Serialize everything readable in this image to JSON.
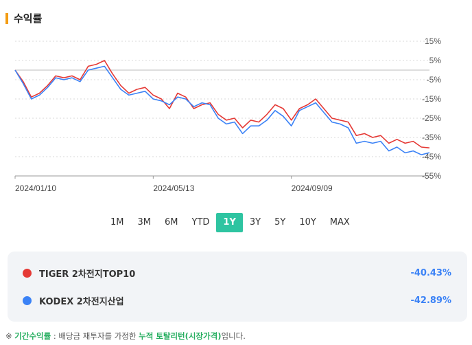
{
  "section": {
    "title": "수익률"
  },
  "chart_data": {
    "type": "line",
    "title": "",
    "xlabel": "",
    "ylabel": "",
    "yticks": [
      "15%",
      "5%",
      "-5%",
      "-15%",
      "-25%",
      "-35%",
      "-45%",
      "-55%"
    ],
    "ylim": [
      -55,
      15
    ],
    "xticks": [
      "2024/01/10",
      "2024/05/13",
      "2024/09/09"
    ],
    "grid": true,
    "x": [
      "2024/01/10",
      "2024/01/17",
      "2024/01/24",
      "2024/01/31",
      "2024/02/07",
      "2024/02/14",
      "2024/02/21",
      "2024/02/28",
      "2024/03/06",
      "2024/03/13",
      "2024/03/20",
      "2024/03/27",
      "2024/04/03",
      "2024/04/10",
      "2024/04/17",
      "2024/04/24",
      "2024/05/01",
      "2024/05/08",
      "2024/05/15",
      "2024/05/22",
      "2024/05/29",
      "2024/06/05",
      "2024/06/12",
      "2024/06/19",
      "2024/06/26",
      "2024/07/03",
      "2024/07/10",
      "2024/07/17",
      "2024/07/24",
      "2024/07/31",
      "2024/08/07",
      "2024/08/14",
      "2024/08/21",
      "2024/08/28",
      "2024/09/04",
      "2024/09/11",
      "2024/09/18",
      "2024/09/25",
      "2024/10/02",
      "2024/10/09",
      "2024/10/16",
      "2024/10/23",
      "2024/10/30",
      "2024/11/06",
      "2024/11/13",
      "2024/11/20",
      "2024/11/27",
      "2024/12/04",
      "2024/12/11",
      "2024/12/18",
      "2024/12/25",
      "2025/01/01"
    ],
    "series": [
      {
        "name": "TIGER 2차전지TOP10",
        "color": "#e53935",
        "values": [
          0,
          -6,
          -14,
          -12,
          -8,
          -3,
          -4,
          -3,
          -5,
          2,
          3,
          5,
          -2,
          -8,
          -12,
          -10,
          -9,
          -13,
          -15,
          -20,
          -12,
          -14,
          -20,
          -18,
          -17,
          -23,
          -26,
          -25,
          -30,
          -26,
          -27,
          -23,
          -18,
          -20,
          -26,
          -20,
          -18,
          -15,
          -20,
          -25,
          -26,
          -27,
          -34,
          -33,
          -35,
          -34,
          -38,
          -36,
          -38,
          -37,
          -40,
          -40.43
        ]
      },
      {
        "name": "KODEX 2차전지산업",
        "color": "#3b82f6",
        "values": [
          0,
          -7,
          -15,
          -13,
          -9,
          -4,
          -5,
          -4,
          -6,
          0,
          1,
          2,
          -4,
          -10,
          -13,
          -12,
          -11,
          -15,
          -16,
          -18,
          -14,
          -15,
          -19,
          -17,
          -18,
          -25,
          -28,
          -27,
          -33,
          -29,
          -29,
          -26,
          -21,
          -24,
          -29,
          -21,
          -19,
          -17,
          -22,
          -27,
          -28,
          -30,
          -38,
          -37,
          -38,
          -37,
          -42,
          -40,
          -43,
          -42,
          -44,
          -42.89
        ]
      }
    ]
  },
  "period_tabs": {
    "items": [
      "1M",
      "3M",
      "6M",
      "YTD",
      "1Y",
      "3Y",
      "5Y",
      "10Y",
      "MAX"
    ],
    "active": "1Y"
  },
  "legend": {
    "items": [
      {
        "name": "TIGER 2차전지TOP10",
        "value": "-40.43%",
        "color": "#e53935"
      },
      {
        "name": "KODEX 2차전지산업",
        "value": "-42.89%",
        "color": "#3b82f6"
      }
    ]
  },
  "footnote": {
    "prefix": "※ ",
    "term": "기간수익률",
    "middle": " : 배당금 재투자를 가정한 ",
    "emphasis": "누적 토탈리턴(시장가격)",
    "suffix": "입니다."
  }
}
